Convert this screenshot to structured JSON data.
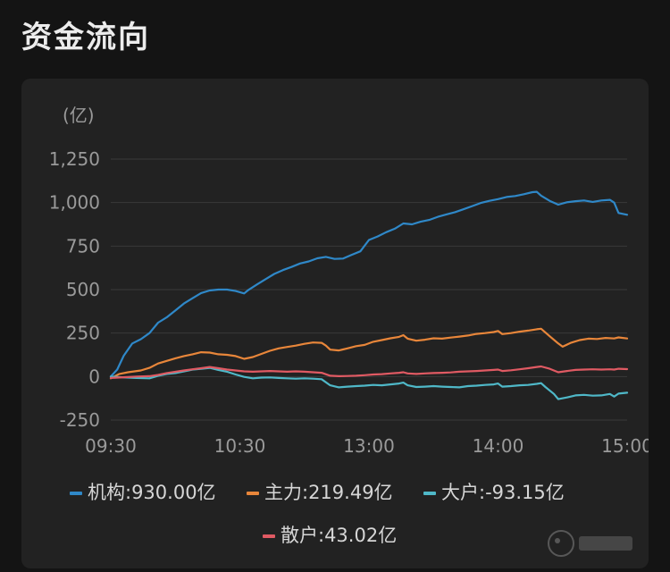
{
  "page": {
    "title": "资金流向"
  },
  "chart_data": {
    "type": "line",
    "unit_label": "(亿)",
    "ylim": [
      -250,
      1250
    ],
    "yticks": [
      {
        "value": 1250,
        "label": "1,250"
      },
      {
        "value": 1000,
        "label": "1,000"
      },
      {
        "value": 750,
        "label": "750"
      },
      {
        "value": 500,
        "label": "500"
      },
      {
        "value": 250,
        "label": "250"
      },
      {
        "value": 0,
        "label": "0"
      },
      {
        "value": -250,
        "label": "-250"
      }
    ],
    "x_points": 240,
    "xticks": [
      {
        "index": 0,
        "label": "09:30"
      },
      {
        "index": 60,
        "label": "10:30"
      },
      {
        "index": 120,
        "label": "13:00"
      },
      {
        "index": 180,
        "label": "14:00"
      },
      {
        "index": 240,
        "label": "15:00"
      }
    ],
    "grid": true,
    "legend_position": "bottom",
    "series": [
      {
        "name": "机构",
        "legend_label": "机构:930.00亿",
        "color": "#2f88c8",
        "points": [
          [
            0,
            0
          ],
          [
            3,
            40
          ],
          [
            6,
            120
          ],
          [
            10,
            190
          ],
          [
            14,
            215
          ],
          [
            18,
            250
          ],
          [
            22,
            310
          ],
          [
            26,
            340
          ],
          [
            30,
            380
          ],
          [
            34,
            420
          ],
          [
            38,
            450
          ],
          [
            42,
            480
          ],
          [
            46,
            495
          ],
          [
            50,
            500
          ],
          [
            54,
            500
          ],
          [
            58,
            492
          ],
          [
            62,
            478
          ],
          [
            64,
            498
          ],
          [
            68,
            530
          ],
          [
            72,
            560
          ],
          [
            76,
            590
          ],
          [
            80,
            612
          ],
          [
            84,
            630
          ],
          [
            88,
            650
          ],
          [
            92,
            662
          ],
          [
            96,
            680
          ],
          [
            100,
            688
          ],
          [
            104,
            676
          ],
          [
            108,
            678
          ],
          [
            112,
            700
          ],
          [
            116,
            720
          ],
          [
            120,
            785
          ],
          [
            124,
            805
          ],
          [
            128,
            830
          ],
          [
            132,
            850
          ],
          [
            136,
            880
          ],
          [
            140,
            875
          ],
          [
            144,
            890
          ],
          [
            148,
            900
          ],
          [
            152,
            918
          ],
          [
            156,
            932
          ],
          [
            160,
            945
          ],
          [
            164,
            962
          ],
          [
            168,
            980
          ],
          [
            172,
            998
          ],
          [
            176,
            1010
          ],
          [
            180,
            1020
          ],
          [
            184,
            1032
          ],
          [
            188,
            1038
          ],
          [
            192,
            1048
          ],
          [
            196,
            1060
          ],
          [
            198,
            1062
          ],
          [
            200,
            1040
          ],
          [
            204,
            1010
          ],
          [
            208,
            988
          ],
          [
            212,
            1002
          ],
          [
            216,
            1008
          ],
          [
            220,
            1012
          ],
          [
            224,
            1004
          ],
          [
            228,
            1012
          ],
          [
            232,
            1016
          ],
          [
            234,
            1000
          ],
          [
            236,
            940
          ],
          [
            240,
            930
          ]
        ]
      },
      {
        "name": "主力",
        "legend_label": "主力:219.49亿",
        "color": "#e8863a",
        "points": [
          [
            0,
            -10
          ],
          [
            4,
            15
          ],
          [
            8,
            25
          ],
          [
            14,
            35
          ],
          [
            18,
            50
          ],
          [
            22,
            75
          ],
          [
            26,
            90
          ],
          [
            30,
            105
          ],
          [
            34,
            118
          ],
          [
            38,
            128
          ],
          [
            42,
            140
          ],
          [
            46,
            138
          ],
          [
            50,
            128
          ],
          [
            54,
            125
          ],
          [
            58,
            118
          ],
          [
            62,
            102
          ],
          [
            66,
            112
          ],
          [
            70,
            130
          ],
          [
            74,
            148
          ],
          [
            78,
            162
          ],
          [
            82,
            170
          ],
          [
            86,
            178
          ],
          [
            90,
            188
          ],
          [
            94,
            196
          ],
          [
            98,
            194
          ],
          [
            100,
            178
          ],
          [
            102,
            155
          ],
          [
            106,
            150
          ],
          [
            110,
            162
          ],
          [
            114,
            175
          ],
          [
            118,
            182
          ],
          [
            122,
            200
          ],
          [
            126,
            210
          ],
          [
            130,
            220
          ],
          [
            134,
            228
          ],
          [
            136,
            238
          ],
          [
            138,
            218
          ],
          [
            142,
            206
          ],
          [
            146,
            212
          ],
          [
            150,
            220
          ],
          [
            154,
            218
          ],
          [
            158,
            224
          ],
          [
            162,
            230
          ],
          [
            166,
            236
          ],
          [
            170,
            245
          ],
          [
            174,
            250
          ],
          [
            178,
            256
          ],
          [
            180,
            262
          ],
          [
            182,
            244
          ],
          [
            186,
            250
          ],
          [
            190,
            258
          ],
          [
            194,
            264
          ],
          [
            198,
            272
          ],
          [
            200,
            275
          ],
          [
            204,
            232
          ],
          [
            208,
            190
          ],
          [
            210,
            172
          ],
          [
            214,
            195
          ],
          [
            218,
            210
          ],
          [
            222,
            218
          ],
          [
            226,
            216
          ],
          [
            230,
            222
          ],
          [
            234,
            219
          ],
          [
            236,
            225
          ],
          [
            240,
            219
          ]
        ]
      },
      {
        "name": "大户",
        "legend_label": "大户:-93.15亿",
        "color": "#4fb8c8",
        "points": [
          [
            0,
            0
          ],
          [
            6,
            -5
          ],
          [
            12,
            -8
          ],
          [
            18,
            -10
          ],
          [
            22,
            5
          ],
          [
            26,
            15
          ],
          [
            30,
            20
          ],
          [
            34,
            30
          ],
          [
            38,
            40
          ],
          [
            42,
            45
          ],
          [
            46,
            50
          ],
          [
            50,
            38
          ],
          [
            54,
            28
          ],
          [
            58,
            12
          ],
          [
            62,
            -2
          ],
          [
            66,
            -10
          ],
          [
            70,
            -6
          ],
          [
            74,
            -5
          ],
          [
            78,
            -8
          ],
          [
            82,
            -10
          ],
          [
            86,
            -12
          ],
          [
            90,
            -10
          ],
          [
            94,
            -12
          ],
          [
            98,
            -15
          ],
          [
            102,
            -50
          ],
          [
            106,
            -62
          ],
          [
            110,
            -58
          ],
          [
            114,
            -55
          ],
          [
            118,
            -52
          ],
          [
            122,
            -48
          ],
          [
            126,
            -50
          ],
          [
            130,
            -45
          ],
          [
            134,
            -40
          ],
          [
            136,
            -35
          ],
          [
            138,
            -50
          ],
          [
            142,
            -60
          ],
          [
            146,
            -58
          ],
          [
            150,
            -55
          ],
          [
            154,
            -58
          ],
          [
            158,
            -60
          ],
          [
            162,
            -62
          ],
          [
            166,
            -55
          ],
          [
            170,
            -52
          ],
          [
            174,
            -48
          ],
          [
            178,
            -45
          ],
          [
            180,
            -40
          ],
          [
            182,
            -58
          ],
          [
            186,
            -55
          ],
          [
            190,
            -50
          ],
          [
            194,
            -48
          ],
          [
            198,
            -42
          ],
          [
            200,
            -38
          ],
          [
            202,
            -60
          ],
          [
            206,
            -100
          ],
          [
            208,
            -130
          ],
          [
            212,
            -120
          ],
          [
            216,
            -108
          ],
          [
            220,
            -105
          ],
          [
            224,
            -110
          ],
          [
            228,
            -108
          ],
          [
            232,
            -100
          ],
          [
            234,
            -115
          ],
          [
            236,
            -98
          ],
          [
            240,
            -93
          ]
        ]
      },
      {
        "name": "散户",
        "legend_label": "散户:43.02亿",
        "color": "#e05a63",
        "points": [
          [
            0,
            -8
          ],
          [
            6,
            -4
          ],
          [
            12,
            0
          ],
          [
            18,
            2
          ],
          [
            22,
            10
          ],
          [
            26,
            20
          ],
          [
            30,
            28
          ],
          [
            34,
            35
          ],
          [
            38,
            42
          ],
          [
            42,
            48
          ],
          [
            46,
            55
          ],
          [
            50,
            48
          ],
          [
            54,
            40
          ],
          [
            58,
            35
          ],
          [
            62,
            30
          ],
          [
            66,
            28
          ],
          [
            70,
            30
          ],
          [
            74,
            32
          ],
          [
            78,
            30
          ],
          [
            82,
            28
          ],
          [
            86,
            30
          ],
          [
            90,
            28
          ],
          [
            94,
            25
          ],
          [
            98,
            22
          ],
          [
            102,
            5
          ],
          [
            106,
            2
          ],
          [
            110,
            3
          ],
          [
            114,
            5
          ],
          [
            118,
            8
          ],
          [
            122,
            12
          ],
          [
            126,
            14
          ],
          [
            130,
            18
          ],
          [
            134,
            22
          ],
          [
            136,
            25
          ],
          [
            138,
            18
          ],
          [
            142,
            15
          ],
          [
            146,
            18
          ],
          [
            150,
            20
          ],
          [
            154,
            22
          ],
          [
            158,
            24
          ],
          [
            162,
            28
          ],
          [
            166,
            30
          ],
          [
            170,
            32
          ],
          [
            174,
            35
          ],
          [
            178,
            38
          ],
          [
            180,
            40
          ],
          [
            182,
            32
          ],
          [
            186,
            36
          ],
          [
            190,
            42
          ],
          [
            194,
            48
          ],
          [
            198,
            55
          ],
          [
            200,
            58
          ],
          [
            204,
            45
          ],
          [
            208,
            25
          ],
          [
            212,
            32
          ],
          [
            216,
            38
          ],
          [
            220,
            40
          ],
          [
            224,
            42
          ],
          [
            228,
            40
          ],
          [
            232,
            42
          ],
          [
            234,
            40
          ],
          [
            236,
            45
          ],
          [
            240,
            43
          ]
        ]
      }
    ]
  },
  "watermark": "新浪财经"
}
